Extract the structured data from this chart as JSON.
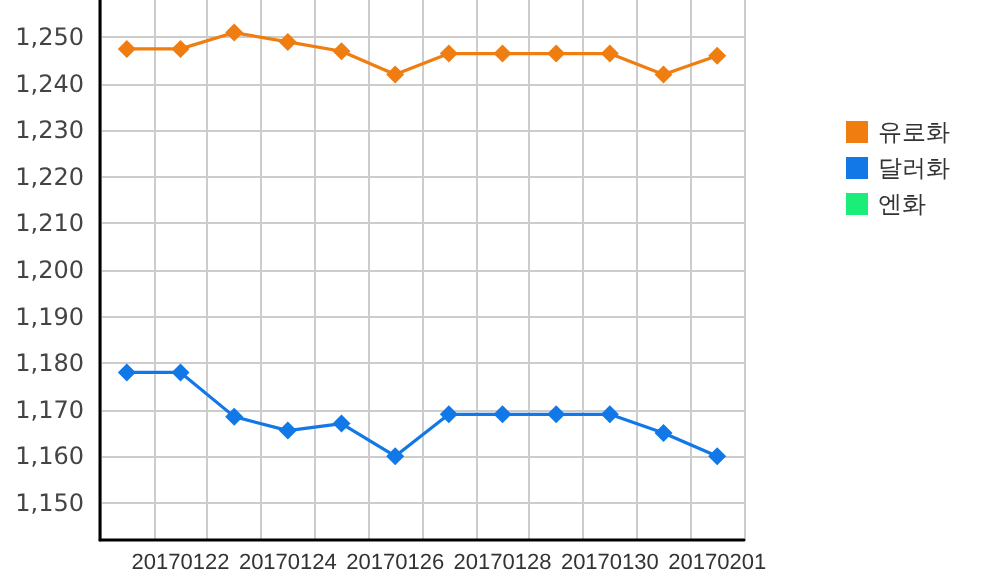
{
  "chart_data": {
    "type": "line",
    "categories": [
      null,
      "20170122",
      null,
      "20170124",
      null,
      "20170126",
      null,
      "20170128",
      null,
      "20170130",
      null,
      "20170201"
    ],
    "series": [
      {
        "name": "유로화",
        "color": "#f07d10",
        "values": [
          1247.5,
          1247.5,
          1251,
          1249,
          1247,
          1242,
          1246.5,
          1246.5,
          1246.5,
          1246.5,
          1242,
          1246
        ]
      },
      {
        "name": "달러화",
        "color": "#1278e8",
        "values": [
          1178,
          1178,
          1168.5,
          1165.5,
          1167,
          1160,
          1169,
          1169,
          1169,
          1169,
          1165,
          1160
        ]
      },
      {
        "name": "엔화",
        "color": "#1aee78",
        "values": [
          null,
          null,
          null,
          null,
          null,
          null,
          null,
          null,
          null,
          null,
          null,
          null
        ]
      }
    ],
    "ylim": [
      1142,
      1258
    ],
    "yticks": [
      {
        "value": 1150,
        "label": "1,150"
      },
      {
        "value": 1160,
        "label": "1,160"
      },
      {
        "value": 1170,
        "label": "1,170"
      },
      {
        "value": 1180,
        "label": "1,180"
      },
      {
        "value": 1190,
        "label": "1,190"
      },
      {
        "value": 1200,
        "label": "1,200"
      },
      {
        "value": 1210,
        "label": "1,210"
      },
      {
        "value": 1220,
        "label": "1,220"
      },
      {
        "value": 1230,
        "label": "1,230"
      },
      {
        "value": 1240,
        "label": "1,240"
      },
      {
        "value": 1250,
        "label": "1,250"
      }
    ],
    "grid": true,
    "legend": "right",
    "marker": "diamond",
    "line_style": "solid"
  }
}
